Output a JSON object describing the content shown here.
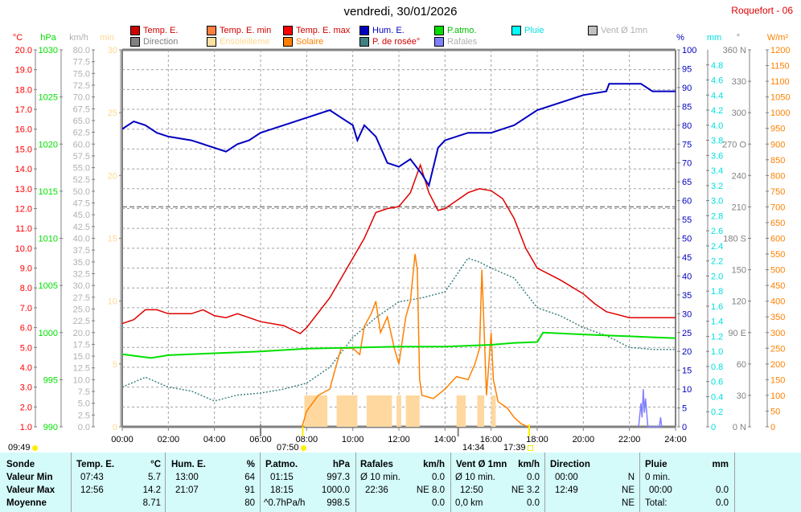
{
  "header": {
    "title": "vendredi, 30/01/2026",
    "station": "Roquefort - 06"
  },
  "legend": [
    {
      "label": "Temp. E.",
      "color": "#d00000",
      "text_color": "#d00000"
    },
    {
      "label": "Temp. E. min",
      "color": "#ff8040",
      "text_color": "#d00000"
    },
    {
      "label": "Temp. E. max",
      "color": "#ff0000",
      "text_color": "#d00000"
    },
    {
      "label": "Hum. E.",
      "color": "#0000c0",
      "text_color": "#0000c0"
    },
    {
      "label": "P.atmo.",
      "color": "#00e000",
      "text_color": "#00c000"
    },
    {
      "label": "Pluie",
      "color": "#00ffff",
      "text_color": "#00e0e0"
    },
    {
      "label": "Vent Ø 1mn",
      "color": "#c0c0c0",
      "text_color": "#b0b0b0"
    },
    {
      "label": "Direction",
      "color": "#808080",
      "text_color": "#808080"
    },
    {
      "label": "Ensoleilleme",
      "color": "#ffe0a0",
      "text_color": "#ffd890"
    },
    {
      "label": "Solaire",
      "color": "#ff8000",
      "text_color": "#ff8000"
    },
    {
      "label": "P. de rosée°",
      "color": "#408080",
      "text_color": "#d00000"
    },
    {
      "label": "Rafales",
      "color": "#8080ff",
      "text_color": "#b0b0b0"
    }
  ],
  "events": [
    {
      "time": "09:49"
    },
    {
      "time": "07:50"
    },
    {
      "time": "14:34"
    },
    {
      "time": "17:39"
    }
  ],
  "chart_data": {
    "type": "line",
    "title": "vendredi, 30/01/2026",
    "x_label_ticks": [
      "00:00",
      "02:00",
      "04:00",
      "06:00",
      "08:00",
      "10:00",
      "12:00",
      "14:00",
      "16:00",
      "18:00",
      "20:00",
      "22:00",
      "24:00"
    ],
    "xlim": [
      0,
      24
    ],
    "axes": {
      "temp": {
        "unit": "°C",
        "range": [
          1,
          20
        ],
        "color": "#ff0000",
        "ticks": [
          "1.0",
          "2.0",
          "3.0",
          "4.0",
          "5.0",
          "6.0",
          "7.0",
          "8.0",
          "9.0",
          "10.0",
          "11.0",
          "12.0",
          "13.0",
          "14.0",
          "15.0",
          "16.0",
          "17.0",
          "18.0",
          "19.0",
          "20.0"
        ]
      },
      "press": {
        "unit": "hPa",
        "range": [
          990,
          1030
        ],
        "color": "#00e000",
        "ticks": [
          "990",
          "995",
          "1000",
          "1005",
          "1010",
          "1015",
          "1020",
          "1025",
          "1030"
        ]
      },
      "wind": {
        "unit": "km/h",
        "range": [
          0,
          80
        ],
        "color": "#b0b0b0",
        "ticks": [
          "0.0",
          "2.5",
          "5.0",
          "7.5",
          "10.0",
          "12.5",
          "15.0",
          "17.5",
          "20.0",
          "22.5",
          "25.0",
          "27.5",
          "30.0",
          "32.5",
          "35.0",
          "37.5",
          "40.0",
          "42.5",
          "45.0",
          "47.5",
          "50.0",
          "52.5",
          "55.0",
          "57.5",
          "60.0",
          "62.5",
          "65.0",
          "67.5",
          "70.0",
          "72.5",
          "75.0",
          "77.5",
          "80.0"
        ]
      },
      "sun": {
        "unit": "min",
        "range": [
          0,
          30
        ],
        "color": "#ffd890",
        "ticks": [
          "0",
          "5",
          "10",
          "15",
          "20",
          "25",
          "30"
        ]
      },
      "hum": {
        "unit": "%",
        "range": [
          0,
          100
        ],
        "color": "#0000c0",
        "ticks": [
          "0",
          "5",
          "10",
          "15",
          "20",
          "25",
          "30",
          "35",
          "40",
          "45",
          "50",
          "55",
          "60",
          "65",
          "70",
          "75",
          "80",
          "85",
          "90",
          "95",
          "100"
        ]
      },
      "rain": {
        "unit": "mm",
        "range": [
          0,
          5
        ],
        "color": "#00e0e0",
        "ticks": [
          "0",
          "0.2",
          "0.4",
          "0.6",
          "0.8",
          "1.0",
          "1.2",
          "1.4",
          "1.6",
          "1.8",
          "2.0",
          "2.2",
          "2.4",
          "2.6",
          "2.8",
          "3.0",
          "3.2",
          "3.4",
          "3.6",
          "3.8",
          "4.0",
          "4.2",
          "4.4",
          "4.6",
          "4.8"
        ]
      },
      "dir": {
        "unit": "°",
        "range": [
          0,
          360
        ],
        "color": "#808080",
        "ticks": [
          "0 N",
          "30",
          "60",
          "90 E",
          "120",
          "150",
          "180 S",
          "210",
          "240",
          "270 O",
          "300",
          "330",
          "360 N"
        ]
      },
      "solar": {
        "unit": "W/m²",
        "range": [
          0,
          1200
        ],
        "color": "#ff8000",
        "ticks": [
          "0",
          "50",
          "100",
          "150",
          "200",
          "250",
          "300",
          "350",
          "400",
          "450",
          "500",
          "550",
          "600",
          "650",
          "700",
          "750",
          "800",
          "850",
          "900",
          "950",
          "1000",
          "1050",
          "1100",
          "1150",
          "1200"
        ]
      }
    },
    "sunshine_bars": [
      [
        7.9,
        8.9
      ],
      [
        9.3,
        10.2
      ],
      [
        10.6,
        11.7
      ],
      [
        11.9,
        12.1
      ],
      [
        12.3,
        12.9
      ],
      [
        14.5,
        14.9
      ],
      [
        15.4,
        15.7
      ],
      [
        16.0,
        16.2
      ]
    ],
    "sunshine_bar_value": 2.5,
    "series": [
      {
        "name": "Direction",
        "axis": "dir",
        "color": "#808080",
        "dash": "6,3",
        "x": [
          0,
          24
        ],
        "y": [
          210,
          210
        ]
      },
      {
        "name": "P. de rosée",
        "axis": "temp",
        "color": "#408080",
        "dash": "2,2",
        "x": [
          0,
          1,
          2,
          3,
          4,
          5,
          6,
          7,
          8,
          9,
          10,
          11,
          12,
          13,
          14,
          15,
          15.5,
          16,
          17,
          18,
          19,
          20,
          21,
          22,
          23,
          24
        ],
        "y": [
          3.0,
          3.5,
          3.0,
          2.8,
          2.3,
          2.6,
          2.7,
          2.9,
          3.2,
          4.0,
          5.5,
          6.5,
          7.3,
          7.5,
          7.8,
          9.5,
          9.3,
          9.0,
          8.5,
          7.0,
          6.6,
          6.0,
          5.6,
          5.0,
          4.9,
          4.9
        ]
      },
      {
        "name": "Solaire",
        "axis": "solar",
        "color": "#ff8000",
        "dash": "",
        "x": [
          7.8,
          8,
          8.5,
          9,
          9.3,
          9.5,
          10,
          10.3,
          10.5,
          10.8,
          11,
          11.2,
          11.5,
          11.8,
          12,
          12.3,
          12.5,
          12.7,
          12.8,
          12.9,
          13,
          13.5,
          14,
          14.5,
          15,
          15.3,
          15.5,
          15.6,
          15.7,
          15.8,
          16,
          16.1,
          16.3,
          16.7,
          17,
          17.3,
          17.6
        ],
        "y": [
          0,
          50,
          100,
          120,
          200,
          250,
          250,
          230,
          320,
          360,
          400,
          300,
          350,
          250,
          200,
          350,
          400,
          550,
          500,
          150,
          100,
          90,
          120,
          160,
          150,
          200,
          250,
          500,
          300,
          100,
          300,
          150,
          80,
          60,
          30,
          10,
          0
        ]
      },
      {
        "name": "P.atmo.",
        "axis": "press",
        "color": "#00e000",
        "dash": "",
        "x": [
          0,
          1.25,
          2,
          4,
          6,
          8,
          10,
          12,
          14,
          16,
          17,
          18,
          18.25,
          20,
          22,
          23,
          24
        ],
        "y": [
          997.7,
          997.3,
          997.6,
          997.8,
          998.0,
          998.3,
          998.4,
          998.5,
          998.5,
          998.7,
          998.9,
          999.0,
          1000.0,
          999.8,
          999.6,
          999.5,
          999.4
        ]
      },
      {
        "name": "Temp. E.",
        "axis": "temp",
        "color": "#e00000",
        "dash": "",
        "x": [
          0,
          0.5,
          1,
          1.5,
          2,
          3,
          3.5,
          4,
          4.5,
          5,
          5.5,
          6,
          7,
          7.72,
          8,
          9,
          10,
          10.5,
          11,
          11.5,
          12,
          12.5,
          12.93,
          13.3,
          13.7,
          14,
          14.5,
          15,
          15.5,
          16,
          16.5,
          17,
          17.5,
          18,
          19,
          20,
          20.5,
          21,
          22,
          23,
          24
        ],
        "y": [
          6.2,
          6.4,
          6.9,
          6.9,
          6.7,
          6.7,
          6.9,
          6.6,
          6.5,
          6.7,
          6.5,
          6.3,
          6.1,
          5.7,
          6.0,
          7.5,
          9.5,
          10.5,
          11.8,
          12.0,
          12.1,
          12.8,
          14.2,
          12.8,
          11.9,
          12.0,
          12.4,
          12.8,
          13.0,
          12.9,
          12.5,
          11.5,
          10.0,
          9.0,
          8.4,
          7.7,
          7.2,
          6.8,
          6.5,
          6.5,
          6.5
        ]
      },
      {
        "name": "Hum. E.",
        "axis": "hum",
        "color": "#0000c0",
        "dash": "",
        "x": [
          0,
          0.5,
          1,
          1.5,
          2,
          3,
          4,
          4.5,
          5,
          5.5,
          6,
          7,
          8,
          9,
          9.5,
          10,
          10.2,
          10.5,
          11,
          11.5,
          12,
          12.5,
          13,
          13.3,
          13.7,
          14,
          15,
          16,
          17,
          18,
          19,
          20,
          21,
          21.12,
          22.5,
          23,
          24
        ],
        "y": [
          79,
          81,
          80,
          78,
          77,
          76,
          74,
          73,
          75,
          76,
          78,
          80,
          82,
          84,
          82,
          80,
          76,
          80,
          77,
          70,
          69,
          71,
          67,
          64,
          74,
          76,
          78,
          78,
          80,
          84,
          86,
          88,
          89,
          91,
          91,
          89,
          89
        ]
      },
      {
        "name": "Rafales",
        "axis": "wind",
        "color": "#8080ff",
        "dash": "",
        "x": [
          22.4,
          22.5,
          22.55,
          22.6,
          22.65,
          22.7,
          22.8,
          23.3,
          23.35,
          23.4
        ],
        "y": [
          0,
          5,
          2,
          8,
          3,
          6,
          0,
          0,
          2,
          0
        ]
      }
    ]
  },
  "table": {
    "headers": {
      "sonde": "Sonde",
      "temp": "Temp. E.",
      "temp_u": "°C",
      "hum": "Hum. E.",
      "hum_u": "%",
      "press": "P.atmo.",
      "press_u": "hPa",
      "gust": "Rafales",
      "gust_u": "km/h",
      "wind": "Vent Ø 1mn",
      "wind_u": "km/h",
      "dir": "Direction",
      "rain": "Pluie",
      "rain_u": "mm"
    },
    "rows": [
      {
        "label": "Valeur Min",
        "temp_t": "07:43",
        "temp_v": "5.7",
        "hum_t": "13:00",
        "hum_v": "64",
        "press_t": "01:15",
        "press_v": "997.3",
        "gust_t": "Ø 10 min.",
        "gust_v": "0.0",
        "wind_t": "Ø 10 min.",
        "wind_v": "0.0",
        "dir_t": "00:00",
        "dir_v": "N",
        "rain_t": "0 min.",
        "rain_v": ""
      },
      {
        "label": "Valeur Max",
        "temp_t": "12:56",
        "temp_v": "14.2",
        "hum_t": "21:07",
        "hum_v": "91",
        "press_t": "18:15",
        "press_v": "1000.0",
        "gust_t": "22:36",
        "gust_v": "NE 8.0",
        "wind_t": "12:50",
        "wind_v": "NE 3.2",
        "dir_t": "12:49",
        "dir_v": "NE",
        "rain_t": "00:00",
        "rain_v": "0.0"
      },
      {
        "label": "Moyenne",
        "temp_t": "",
        "temp_v": "8.71",
        "hum_t": "",
        "hum_v": "80",
        "press_t": "^0.7hPa/h",
        "press_v": "998.5",
        "gust_t": "",
        "gust_v": "0.0",
        "wind_t": "0,0 km",
        "wind_v": "0.0",
        "dir_t": "",
        "dir_v": "NE",
        "rain_t": "Total:",
        "rain_v": "0.0"
      }
    ]
  }
}
